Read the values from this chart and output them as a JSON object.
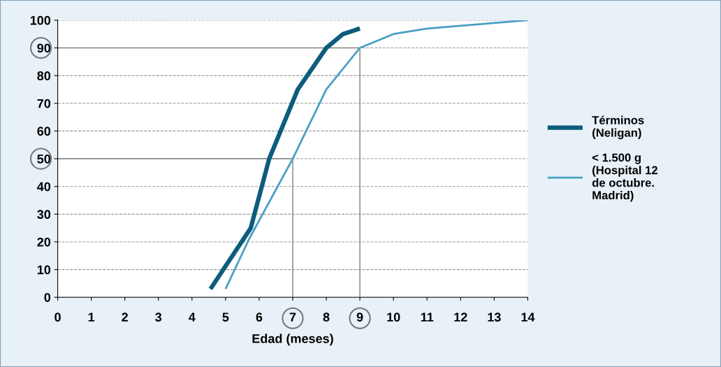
{
  "chart_data": {
    "type": "line",
    "xlabel": "Edad (meses)",
    "xlim": [
      0,
      14
    ],
    "xticks": [
      0,
      1,
      2,
      3,
      4,
      5,
      6,
      7,
      8,
      9,
      10,
      11,
      12,
      13,
      14
    ],
    "ylim": [
      0,
      100
    ],
    "yticks": [
      0,
      10,
      20,
      30,
      40,
      50,
      60,
      70,
      80,
      90,
      100
    ],
    "grid": "y",
    "legend": "right",
    "line_style": "solid",
    "marker": "none",
    "series": [
      {
        "name": "Términos\n(Neligan)",
        "color": "#0d5c7c",
        "x": [
          4.55,
          5.75,
          6.3,
          7.15,
          8,
          8.5,
          9
        ],
        "values": [
          3,
          25,
          50,
          75,
          90,
          95,
          97
        ]
      },
      {
        "name": "< 1.500 g\n(Hospital 12\nde octubre.\nMadrid)",
        "color": "#4a9fc4",
        "x": [
          5,
          5.7,
          7,
          8,
          9,
          10,
          11,
          14
        ],
        "values": [
          3,
          21,
          50,
          75,
          90,
          95,
          97,
          100
        ]
      },
      {
        "color": "#808080",
        "x": [
          0,
          7,
          7
        ],
        "values": [
          50,
          50,
          0
        ]
      },
      {
        "color": "#808080",
        "x": [
          0,
          9,
          9
        ],
        "values": [
          90,
          90,
          0
        ]
      }
    ]
  }
}
